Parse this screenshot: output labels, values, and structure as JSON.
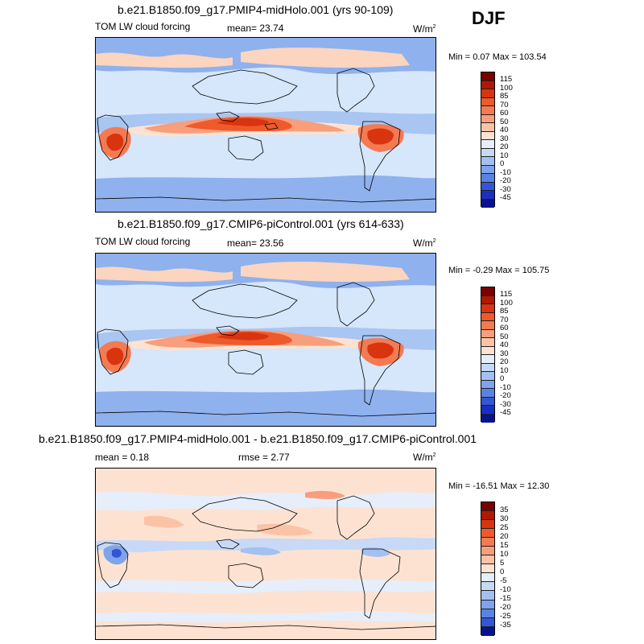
{
  "season": "DJF",
  "panels": [
    {
      "title": "b.e21.B1850.f09_g17.PMIP4-midHolo.001 (yrs 90-109)",
      "left_label": "TOM LW cloud forcing",
      "mean_label": "mean=  23.74",
      "units_label": "W/m",
      "units_exp": "2",
      "minmax": "Min =   0.07 Max = 103.54",
      "colorbar": {
        "labels": [
          "115",
          "100",
          "85",
          "70",
          "60",
          "50",
          "40",
          "30",
          "20",
          "10",
          "0",
          "-10",
          "-20",
          "-30",
          "-45"
        ],
        "colors": [
          "#7a0000",
          "#b01800",
          "#d83410",
          "#ee5a2c",
          "#f47a52",
          "#f89e7c",
          "#fbc3a6",
          "#fde2d2",
          "#e6eefb",
          "#c7d9f6",
          "#a3c0f1",
          "#7fa3ec",
          "#5a82e4",
          "#3356d6",
          "#1a2fc0",
          "#08128f"
        ]
      }
    },
    {
      "title": "b.e21.B1850.f09_g17.CMIP6-piControl.001 (yrs 614-633)",
      "left_label": "TOM LW cloud forcing",
      "mean_label": "mean=  23.56",
      "units_label": "W/m",
      "units_exp": "2",
      "minmax": "Min =  -0.29 Max = 105.75",
      "colorbar": {
        "labels": [
          "115",
          "100",
          "85",
          "70",
          "60",
          "50",
          "40",
          "30",
          "20",
          "10",
          "0",
          "-10",
          "-20",
          "-30",
          "-45"
        ],
        "colors": [
          "#7a0000",
          "#b01800",
          "#d83410",
          "#ee5a2c",
          "#f47a52",
          "#f89e7c",
          "#fbc3a6",
          "#fde2d2",
          "#e6eefb",
          "#c7d9f6",
          "#a3c0f1",
          "#7fa3ec",
          "#5a82e4",
          "#3356d6",
          "#1a2fc0",
          "#08128f"
        ]
      }
    },
    {
      "title": "b.e21.B1850.f09_g17.PMIP4-midHolo.001 - b.e21.B1850.f09_g17.CMIP6-piControl.001",
      "left_label": "mean =   0.18",
      "mean_label": "rmse =   2.77",
      "units_label": "W/m",
      "units_exp": "2",
      "minmax": "Min = -16.51 Max =  12.30",
      "colorbar": {
        "labels": [
          "35",
          "30",
          "25",
          "20",
          "15",
          "10",
          "5",
          "0",
          "-5",
          "-10",
          "-15",
          "-20",
          "-25",
          "-35"
        ],
        "colors": [
          "#7a0000",
          "#b01800",
          "#d83410",
          "#ee5a2c",
          "#f47a52",
          "#f89e7c",
          "#fbc3a6",
          "#fde2d2",
          "#e6eefb",
          "#c7d9f6",
          "#a3c0f1",
          "#7fa3ec",
          "#5a82e4",
          "#3356d6",
          "#08128f"
        ]
      }
    }
  ]
}
